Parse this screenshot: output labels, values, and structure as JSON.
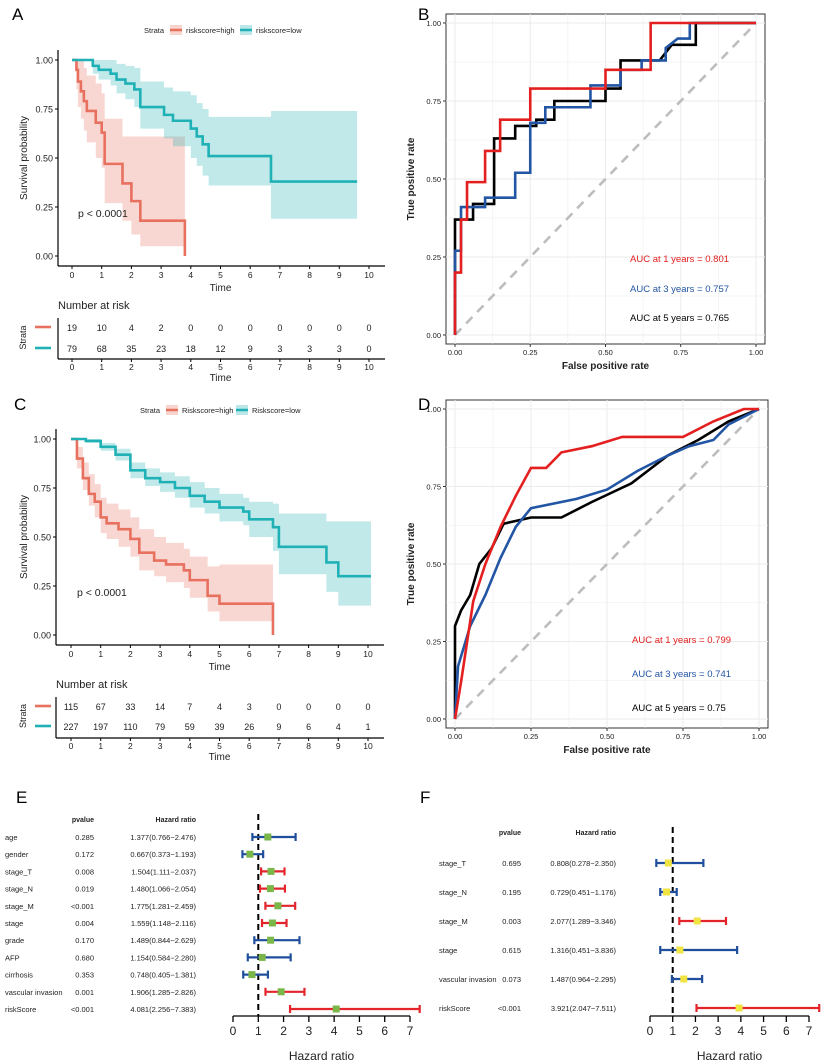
{
  "panels": {
    "A": "A",
    "B": "B",
    "C": "C",
    "D": "D",
    "E": "E",
    "F": "F"
  },
  "chart_data": [
    {
      "id": "A",
      "type": "line",
      "subtype": "kaplan-meier",
      "xlabel": "Time",
      "ylabel": "Survival probability",
      "xlim": [
        0,
        10
      ],
      "ylim": [
        0,
        1
      ],
      "xticks": [
        "0",
        "1",
        "2",
        "3",
        "4",
        "5",
        "6",
        "7",
        "8",
        "9",
        "10"
      ],
      "yticks": [
        "0.00",
        "0.25",
        "0.50",
        "0.75",
        "1.00"
      ],
      "legend": {
        "title": "Strata",
        "position": "top",
        "entries": [
          "riskscore=high",
          "riskscore=low"
        ]
      },
      "pvalue_label": "p < 0.0001",
      "series": [
        {
          "name": "riskscore=high",
          "color": "#E7705F",
          "t": [
            0,
            0.15,
            0.2,
            0.3,
            0.4,
            0.5,
            0.8,
            1.0,
            1.1,
            1.7,
            2.0,
            2.3,
            3.8
          ],
          "s": [
            1,
            0.95,
            0.89,
            0.84,
            0.79,
            0.74,
            0.68,
            0.63,
            0.47,
            0.37,
            0.28,
            0.18,
            0
          ],
          "lower": [
            1,
            0.85,
            0.76,
            0.7,
            0.64,
            0.58,
            0.5,
            0.45,
            0.27,
            0.18,
            0.11,
            0.05,
            0.05
          ],
          "upper": [
            1,
            1,
            1,
            1,
            0.96,
            0.92,
            0.88,
            0.83,
            0.7,
            0.61,
            0.61,
            0.61,
            0.61
          ]
        },
        {
          "name": "riskscore=low",
          "color": "#1FB1B5",
          "t": [
            0,
            0.7,
            0.9,
            1.3,
            1.5,
            1.8,
            2.1,
            2.3,
            3.1,
            3.4,
            4.0,
            4.2,
            4.4,
            4.6,
            6.7,
            9.6
          ],
          "s": [
            1,
            0.97,
            0.95,
            0.93,
            0.9,
            0.88,
            0.85,
            0.76,
            0.72,
            0.69,
            0.65,
            0.61,
            0.57,
            0.51,
            0.38,
            0.38
          ],
          "lower": [
            1,
            0.93,
            0.9,
            0.87,
            0.83,
            0.8,
            0.76,
            0.65,
            0.6,
            0.56,
            0.5,
            0.46,
            0.41,
            0.36,
            0.19,
            0.19
          ],
          "upper": [
            1,
            1,
            1,
            1,
            0.98,
            0.97,
            0.96,
            0.89,
            0.86,
            0.84,
            0.82,
            0.78,
            0.75,
            0.71,
            0.74,
            0.74
          ]
        }
      ],
      "risk_table": {
        "title": "Number at risk",
        "ylabel": "Strata",
        "xlabel": "Time",
        "rows": [
          [
            "19",
            "10",
            "4",
            "2",
            "0",
            "0",
            "0",
            "0",
            "0",
            "0",
            "0"
          ],
          [
            "79",
            "68",
            "35",
            "23",
            "18",
            "12",
            "9",
            "3",
            "3",
            "3",
            "0"
          ]
        ]
      }
    },
    {
      "id": "B",
      "type": "line",
      "subtype": "roc",
      "xlabel": "False positive rate",
      "ylabel": "True positive rate",
      "xlim": [
        0,
        1
      ],
      "ylim": [
        0,
        1
      ],
      "xticks": [
        "0.00",
        "0.25",
        "0.50",
        "0.75",
        "1.00"
      ],
      "yticks": [
        "0.00",
        "0.25",
        "0.50",
        "0.75",
        "1.00"
      ],
      "grid": true,
      "series": [
        {
          "label": "AUC at 1 years = 0.801",
          "color": "#E3201F",
          "fpr": [
            0,
            0,
            0.02,
            0.02,
            0.04,
            0.04,
            0.1,
            0.1,
            0.15,
            0.15,
            0.25,
            0.25,
            0.33,
            0.33,
            0.5,
            0.5,
            0.65,
            0.65,
            1
          ],
          "tpr": [
            0,
            0.2,
            0.2,
            0.37,
            0.37,
            0.49,
            0.49,
            0.59,
            0.59,
            0.69,
            0.69,
            0.79,
            0.79,
            0.79,
            0.79,
            0.85,
            0.85,
            1,
            1
          ]
        },
        {
          "label": "AUC at 3 years = 0.757",
          "color": "#2255A4",
          "fpr": [
            0,
            0,
            0.02,
            0.02,
            0.1,
            0.1,
            0.2,
            0.2,
            0.25,
            0.25,
            0.3,
            0.3,
            0.45,
            0.45,
            0.55,
            0.55,
            0.62,
            0.62,
            0.7,
            0.7,
            0.74,
            0.78,
            0.78,
            1
          ],
          "tpr": [
            0,
            0.27,
            0.27,
            0.41,
            0.41,
            0.44,
            0.44,
            0.52,
            0.52,
            0.68,
            0.68,
            0.73,
            0.73,
            0.8,
            0.8,
            0.85,
            0.85,
            0.88,
            0.88,
            0.92,
            0.95,
            0.95,
            1,
            1
          ]
        },
        {
          "label": "AUC at 5 years = 0.765",
          "color": "#000000",
          "fpr": [
            0,
            0,
            0.06,
            0.06,
            0.13,
            0.13,
            0.2,
            0.2,
            0.27,
            0.27,
            0.33,
            0.33,
            0.5,
            0.5,
            0.55,
            0.55,
            0.68,
            0.72,
            0.8,
            0.8,
            1
          ],
          "tpr": [
            0,
            0.37,
            0.37,
            0.42,
            0.42,
            0.63,
            0.63,
            0.67,
            0.67,
            0.69,
            0.69,
            0.75,
            0.75,
            0.79,
            0.79,
            0.88,
            0.88,
            0.93,
            0.93,
            1,
            1
          ]
        }
      ]
    },
    {
      "id": "C",
      "type": "line",
      "subtype": "kaplan-meier",
      "xlabel": "Time",
      "ylabel": "Survival probability",
      "xlim": [
        0,
        10
      ],
      "ylim": [
        0,
        1
      ],
      "xticks": [
        "0",
        "1",
        "2",
        "3",
        "4",
        "5",
        "6",
        "7",
        "8",
        "9",
        "10"
      ],
      "yticks": [
        "0.00",
        "0.25",
        "0.50",
        "0.75",
        "1.00"
      ],
      "legend": {
        "title": "Strata",
        "position": "top",
        "entries": [
          "Riskscore=high",
          "Riskscore=low"
        ]
      },
      "pvalue_label": "p < 0.0001",
      "series": [
        {
          "name": "Riskscore=high",
          "color": "#E7705F",
          "t": [
            0,
            0.2,
            0.4,
            0.6,
            0.8,
            1.0,
            1.2,
            1.6,
            2.0,
            2.3,
            2.8,
            3.2,
            3.8,
            4.0,
            4.6,
            5.0,
            6.8
          ],
          "s": [
            1,
            0.9,
            0.8,
            0.72,
            0.68,
            0.6,
            0.57,
            0.54,
            0.49,
            0.42,
            0.38,
            0.36,
            0.33,
            0.28,
            0.2,
            0.16,
            0
          ],
          "lower": [
            1,
            0.85,
            0.74,
            0.66,
            0.6,
            0.52,
            0.49,
            0.45,
            0.4,
            0.33,
            0.3,
            0.27,
            0.24,
            0.19,
            0.12,
            0.07,
            0.07
          ],
          "upper": [
            1,
            0.96,
            0.88,
            0.82,
            0.77,
            0.7,
            0.67,
            0.64,
            0.6,
            0.54,
            0.5,
            0.47,
            0.44,
            0.4,
            0.35,
            0.36,
            0.36
          ]
        },
        {
          "name": "Riskscore=low",
          "color": "#1FB1B5",
          "t": [
            0,
            0.5,
            1.0,
            1.5,
            2.0,
            2.5,
            3.0,
            3.5,
            4.0,
            4.5,
            5.0,
            5.8,
            6.0,
            6.8,
            7.0,
            8.6,
            9.0,
            10.1
          ],
          "s": [
            1,
            0.99,
            0.96,
            0.92,
            0.84,
            0.8,
            0.78,
            0.75,
            0.71,
            0.68,
            0.65,
            0.63,
            0.59,
            0.55,
            0.45,
            0.37,
            0.3,
            0.3
          ],
          "lower": [
            1,
            0.98,
            0.94,
            0.89,
            0.8,
            0.76,
            0.73,
            0.7,
            0.65,
            0.62,
            0.58,
            0.56,
            0.5,
            0.43,
            0.31,
            0.22,
            0.15,
            0.15
          ],
          "upper": [
            1,
            1,
            0.98,
            0.95,
            0.88,
            0.85,
            0.83,
            0.81,
            0.78,
            0.75,
            0.72,
            0.7,
            0.68,
            0.67,
            0.62,
            0.58,
            0.58,
            0.58
          ]
        }
      ],
      "risk_table": {
        "title": "Number at risk",
        "ylabel": "Strata",
        "xlabel": "Time",
        "rows": [
          [
            "115",
            "67",
            "33",
            "14",
            "7",
            "4",
            "3",
            "0",
            "0",
            "0",
            "0"
          ],
          [
            "227",
            "197",
            "110",
            "79",
            "59",
            "39",
            "26",
            "9",
            "6",
            "4",
            "1"
          ]
        ]
      }
    },
    {
      "id": "D",
      "type": "line",
      "subtype": "roc",
      "xlabel": "False positive rate",
      "ylabel": "True positive rate",
      "xlim": [
        0,
        1
      ],
      "ylim": [
        0,
        1
      ],
      "xticks": [
        "0.00",
        "0.25",
        "0.50",
        "0.75",
        "1.00"
      ],
      "yticks": [
        "0.00",
        "0.25",
        "0.50",
        "0.75",
        "1.00"
      ],
      "grid": true,
      "series": [
        {
          "label": "AUC at 1 years = 0.799",
          "color": "#E3201F",
          "fpr": [
            0,
            0.02,
            0.04,
            0.06,
            0.1,
            0.15,
            0.2,
            0.25,
            0.3,
            0.35,
            0.45,
            0.55,
            0.75,
            0.85,
            0.95,
            1
          ],
          "tpr": [
            0,
            0.12,
            0.25,
            0.38,
            0.5,
            0.62,
            0.72,
            0.81,
            0.81,
            0.86,
            0.88,
            0.91,
            0.91,
            0.96,
            1,
            1
          ]
        },
        {
          "label": "AUC at 3 years = 0.741",
          "color": "#2255A4",
          "fpr": [
            0,
            0.01,
            0.05,
            0.1,
            0.15,
            0.2,
            0.25,
            0.4,
            0.5,
            0.6,
            0.7,
            0.77,
            0.85,
            0.9,
            1
          ],
          "tpr": [
            0,
            0.17,
            0.3,
            0.4,
            0.52,
            0.62,
            0.68,
            0.71,
            0.74,
            0.8,
            0.85,
            0.88,
            0.9,
            0.95,
            1
          ]
        },
        {
          "label": "AUC at 5 years = 0.75",
          "color": "#000000",
          "fpr": [
            0,
            0,
            0.02,
            0.05,
            0.08,
            0.12,
            0.16,
            0.25,
            0.35,
            0.45,
            0.58,
            0.7,
            0.8,
            0.9,
            1
          ],
          "tpr": [
            0,
            0.3,
            0.35,
            0.4,
            0.5,
            0.55,
            0.63,
            0.65,
            0.65,
            0.7,
            0.76,
            0.85,
            0.9,
            0.96,
            1
          ]
        }
      ]
    },
    {
      "id": "E",
      "type": "forest",
      "headers": {
        "pvalue": "pvalue",
        "hr": "Hazard ratio"
      },
      "xlabel": "Hazard ratio",
      "xlim": [
        0,
        7
      ],
      "xticks": [
        "0",
        "1",
        "2",
        "3",
        "4",
        "5",
        "6",
        "7"
      ],
      "reference_line": 1,
      "colors": {
        "significant": "#E3242B",
        "nonsignificant": "#1F4E9C",
        "point": "#7AB648"
      },
      "rows": [
        {
          "label": "age",
          "pvalue": "0.285",
          "hr_text": "1.377(0.766−2.476)",
          "hr": 1.377,
          "lo": 0.766,
          "hi": 2.476
        },
        {
          "label": "gender",
          "pvalue": "0.172",
          "hr_text": "0.667(0.373−1.193)",
          "hr": 0.667,
          "lo": 0.373,
          "hi": 1.193
        },
        {
          "label": "stage_T",
          "pvalue": "0.008",
          "hr_text": "1.504(1.111−2.037)",
          "hr": 1.504,
          "lo": 1.111,
          "hi": 2.037
        },
        {
          "label": "stage_N",
          "pvalue": "0.019",
          "hr_text": "1.480(1.066−2.054)",
          "hr": 1.48,
          "lo": 1.066,
          "hi": 2.054
        },
        {
          "label": "stage_M",
          "pvalue": "<0.001",
          "hr_text": "1.775(1.281−2.459)",
          "hr": 1.775,
          "lo": 1.281,
          "hi": 2.459
        },
        {
          "label": "stage",
          "pvalue": "0.004",
          "hr_text": "1.559(1.148−2.116)",
          "hr": 1.559,
          "lo": 1.148,
          "hi": 2.116
        },
        {
          "label": "grade",
          "pvalue": "0.170",
          "hr_text": "1.489(0.844−2.629)",
          "hr": 1.489,
          "lo": 0.844,
          "hi": 2.629
        },
        {
          "label": "AFP",
          "pvalue": "0.680",
          "hr_text": "1.154(0.584−2.280)",
          "hr": 1.154,
          "lo": 0.584,
          "hi": 2.28
        },
        {
          "label": "cirrhosis",
          "pvalue": "0.353",
          "hr_text": "0.748(0.405−1.381)",
          "hr": 0.748,
          "lo": 0.405,
          "hi": 1.381
        },
        {
          "label": "vascular invasion",
          "pvalue": "0.001",
          "hr_text": "1.906(1.285−2.826)",
          "hr": 1.906,
          "lo": 1.285,
          "hi": 2.826
        },
        {
          "label": "riskScore",
          "pvalue": "<0.001",
          "hr_text": "4.081(2.256−7.383)",
          "hr": 4.081,
          "lo": 2.256,
          "hi": 7.383
        }
      ]
    },
    {
      "id": "F",
      "type": "forest",
      "headers": {
        "pvalue": "pvalue",
        "hr": "Hazard ratio"
      },
      "xlabel": "Hazard ratio",
      "xlim": [
        0,
        7
      ],
      "xticks": [
        "0",
        "1",
        "2",
        "3",
        "4",
        "5",
        "6",
        "7"
      ],
      "reference_line": 1,
      "colors": {
        "significant": "#E3242B",
        "nonsignificant": "#1F4E9C",
        "point": "#F0E442"
      },
      "rows": [
        {
          "label": "stage_T",
          "pvalue": "0.695",
          "hr_text": "0.808(0.278−2.350)",
          "hr": 0.808,
          "lo": 0.278,
          "hi": 2.35
        },
        {
          "label": "stage_N",
          "pvalue": "0.195",
          "hr_text": "0.729(0.451−1.176)",
          "hr": 0.729,
          "lo": 0.451,
          "hi": 1.176
        },
        {
          "label": "stage_M",
          "pvalue": "0.003",
          "hr_text": "2.077(1.289−3.346)",
          "hr": 2.077,
          "lo": 1.289,
          "hi": 3.346
        },
        {
          "label": "stage",
          "pvalue": "0.615",
          "hr_text": "1.316(0.451−3.836)",
          "hr": 1.316,
          "lo": 0.451,
          "hi": 3.836
        },
        {
          "label": "vascular invasion",
          "pvalue": "0.073",
          "hr_text": "1.487(0.964−2.295)",
          "hr": 1.487,
          "lo": 0.964,
          "hi": 2.295
        },
        {
          "label": "riskScore",
          "pvalue": "<0.001",
          "hr_text": "3.921(2.047−7.511)",
          "hr": 3.921,
          "lo": 2.047,
          "hi": 7.511
        }
      ]
    }
  ]
}
